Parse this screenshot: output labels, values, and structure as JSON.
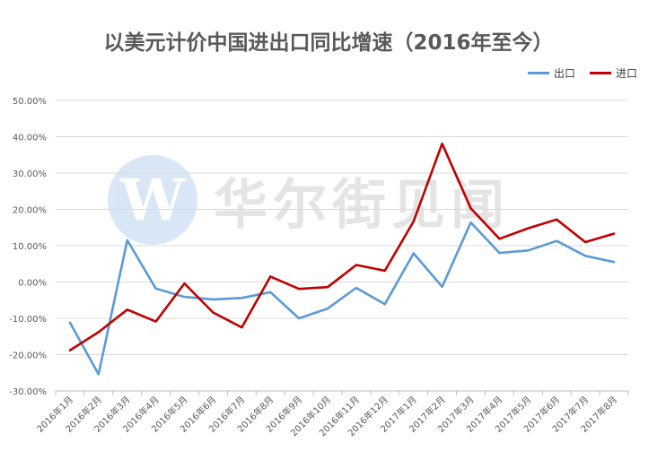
{
  "chart_data": {
    "type": "line",
    "title": "以美元计价中国进出口同比增速（2016年至今）",
    "categories": [
      "2016年1月",
      "2016年2月",
      "2016年3月",
      "2016年4月",
      "2016年5月",
      "2016年6月",
      "2016年7月",
      "2016年8月",
      "2016年9月",
      "2016年10月",
      "2016年11月",
      "2016年12月",
      "2017年1月",
      "2017年2月",
      "2017年3月",
      "2017年4月",
      "2017年5月",
      "2017年6月",
      "2017年7月",
      "2017年8月"
    ],
    "yticks": [
      "50.00%",
      "40.00%",
      "30.00%",
      "20.00%",
      "10.00%",
      "0.00%",
      "-10.00%",
      "-20.00%",
      "-30.00%"
    ],
    "ylim": [
      -30,
      50
    ],
    "grid": true,
    "legend_position": "top-right",
    "series": [
      {
        "name": "出口",
        "color": "#5b9bd5",
        "values": [
          -11.2,
          -25.4,
          11.5,
          -1.8,
          -4.1,
          -4.8,
          -4.4,
          -2.8,
          -10.0,
          -7.3,
          -1.6,
          -6.1,
          7.9,
          -1.3,
          16.4,
          8.0,
          8.7,
          11.3,
          7.2,
          5.5
        ]
      },
      {
        "name": "进口",
        "color": "#c00000",
        "values": [
          -18.8,
          -13.8,
          -7.6,
          -10.9,
          -0.4,
          -8.4,
          -12.5,
          1.5,
          -1.9,
          -1.4,
          4.7,
          3.1,
          16.7,
          38.1,
          20.3,
          11.9,
          14.8,
          17.2,
          11.0,
          13.3
        ]
      }
    ]
  },
  "watermark": {
    "logo_letter": "W",
    "text": "华尔街见闻"
  }
}
